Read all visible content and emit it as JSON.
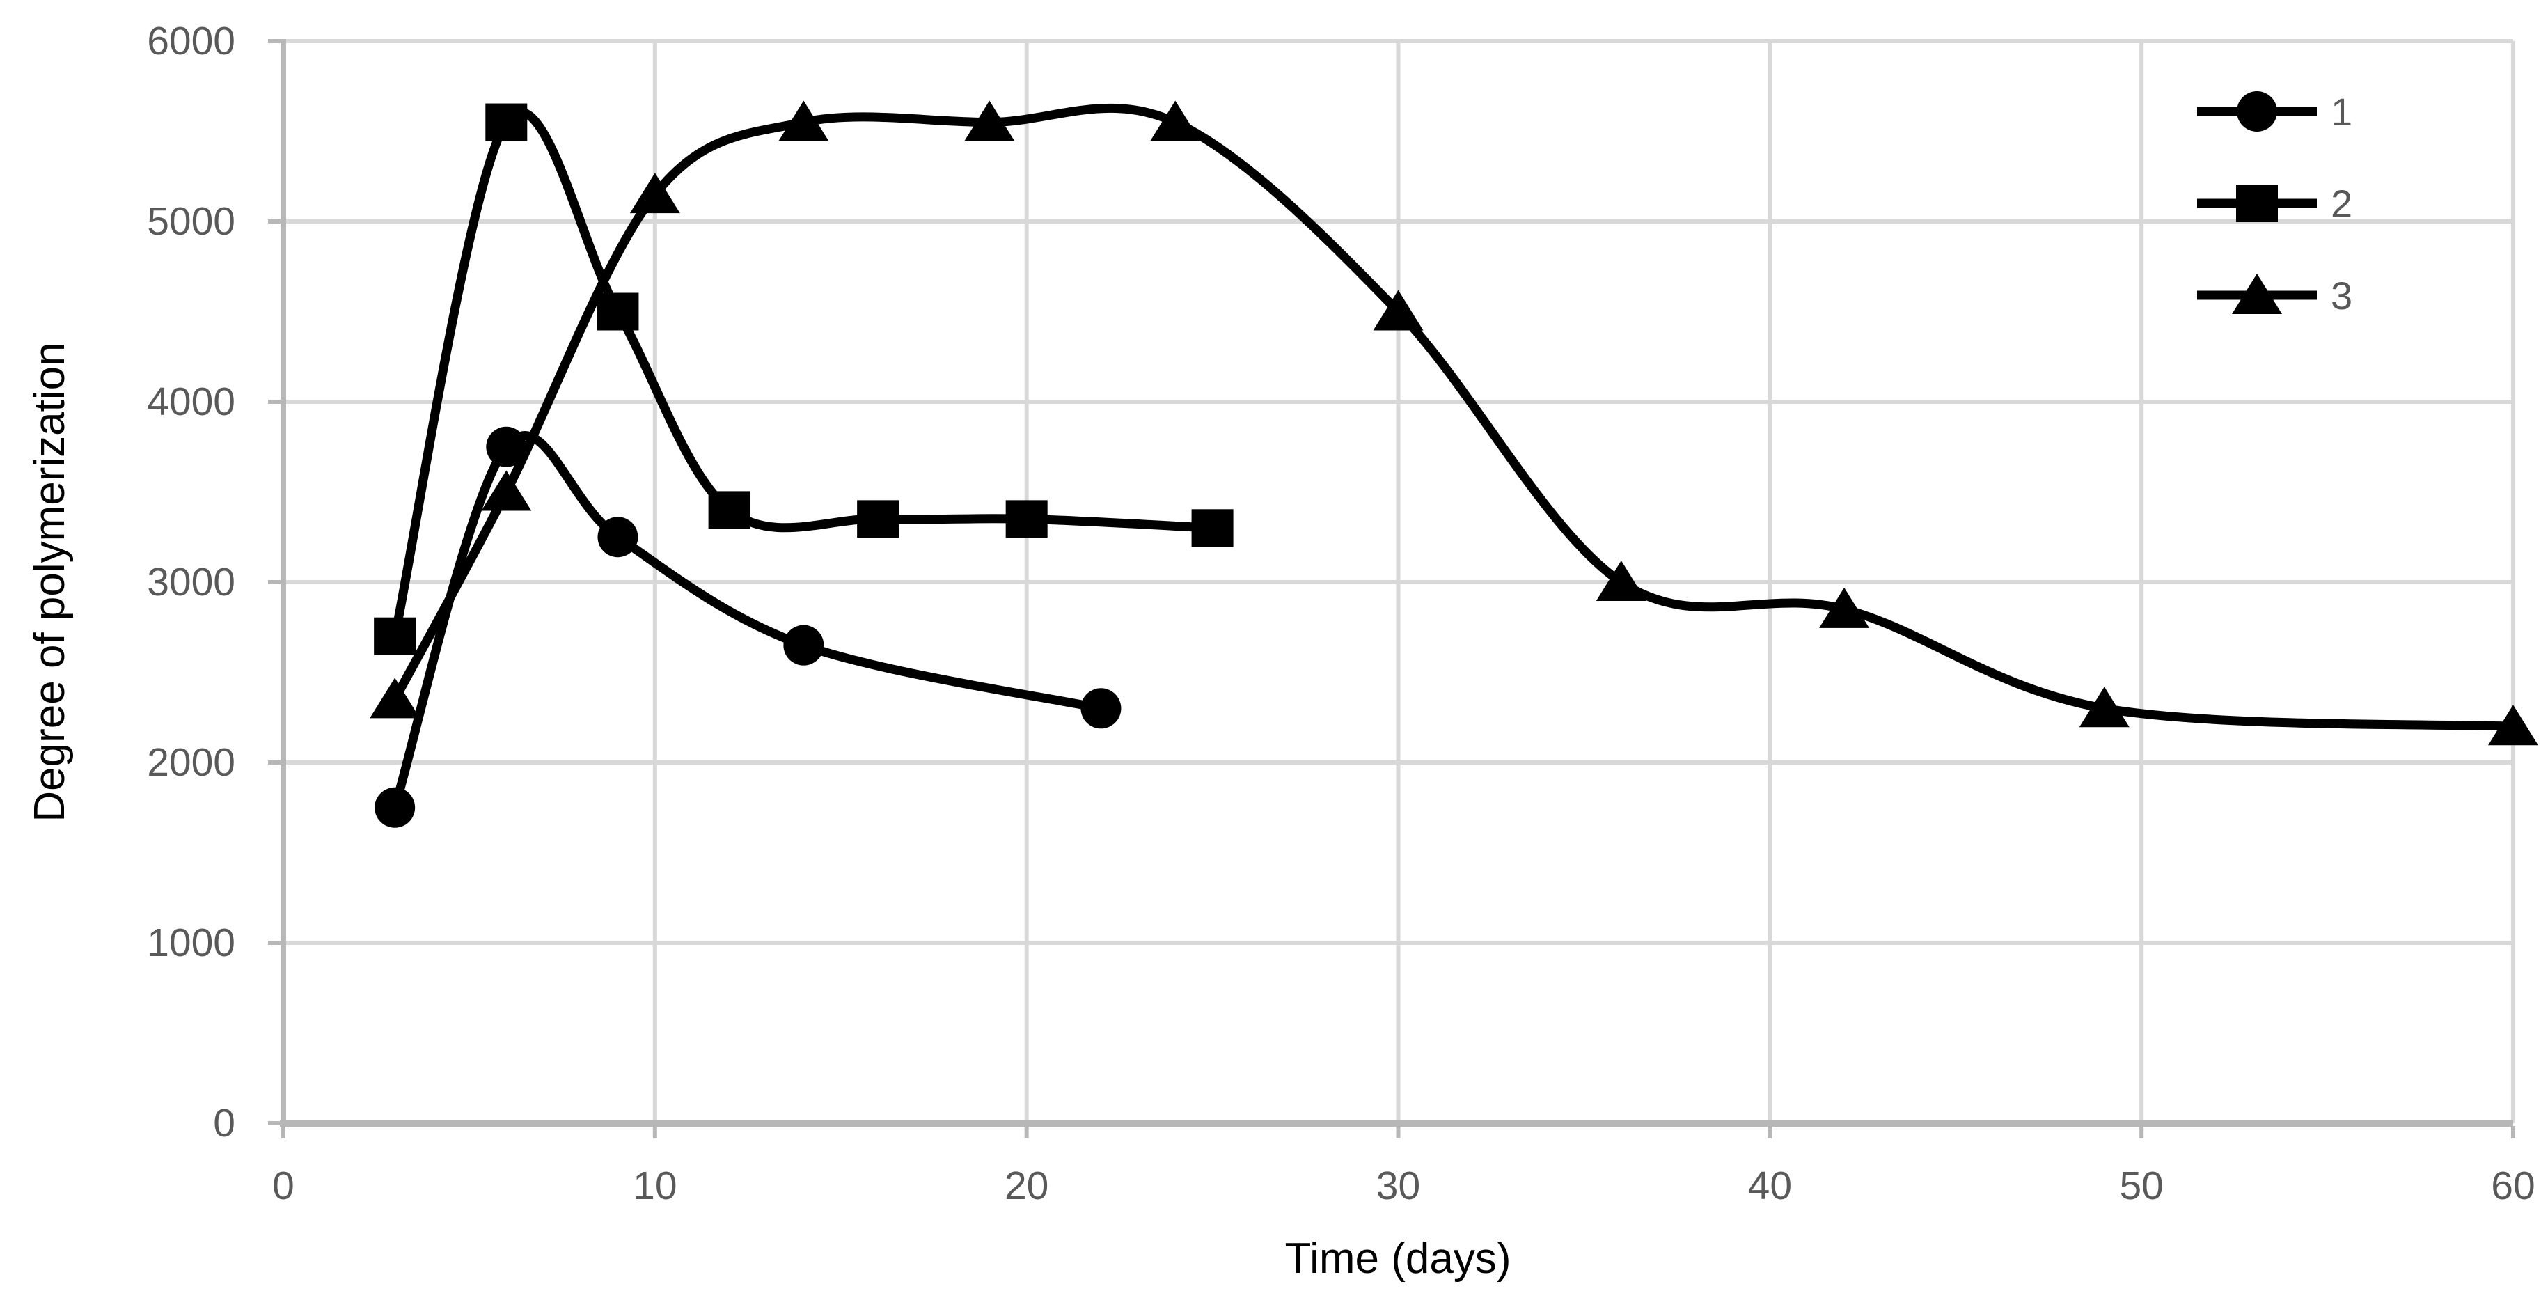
{
  "chart_data": {
    "type": "line",
    "title": "",
    "xlabel": "Time (days)",
    "ylabel": "Degree of polymerization",
    "xlim": [
      0,
      60
    ],
    "ylim": [
      0,
      6000
    ],
    "x_ticks": [
      0,
      10,
      20,
      30,
      40,
      50,
      60
    ],
    "y_ticks": [
      0,
      1000,
      2000,
      3000,
      4000,
      5000,
      6000
    ],
    "grid": true,
    "smoothed_lines": true,
    "legend_position": "top-right-inside",
    "series": [
      {
        "name": "1",
        "marker": "circle",
        "points": [
          [
            3,
            1750
          ],
          [
            6,
            3750
          ],
          [
            9,
            3250
          ],
          [
            14,
            2650
          ],
          [
            22,
            2300
          ]
        ]
      },
      {
        "name": "2",
        "marker": "square",
        "points": [
          [
            3,
            2700
          ],
          [
            6,
            5550
          ],
          [
            9,
            4500
          ],
          [
            12,
            3400
          ],
          [
            16,
            3350
          ],
          [
            20,
            3350
          ],
          [
            25,
            3300
          ]
        ]
      },
      {
        "name": "3",
        "marker": "triangle",
        "points": [
          [
            3,
            2350
          ],
          [
            6,
            3500
          ],
          [
            10,
            5150
          ],
          [
            14,
            5550
          ],
          [
            19,
            5550
          ],
          [
            24,
            5550
          ],
          [
            30,
            4500
          ],
          [
            36,
            3000
          ],
          [
            42,
            2850
          ],
          [
            49,
            2300
          ],
          [
            60,
            2200
          ]
        ]
      }
    ],
    "colors": {
      "series_line": "#000000",
      "marker_fill": "#000000",
      "gridline": "#D8D8D8",
      "axis_line": "#B7B7B7",
      "tick_label": "#595959",
      "axis_title": "#000000",
      "legend_label": "#595959",
      "background": "#FFFFFF"
    }
  }
}
